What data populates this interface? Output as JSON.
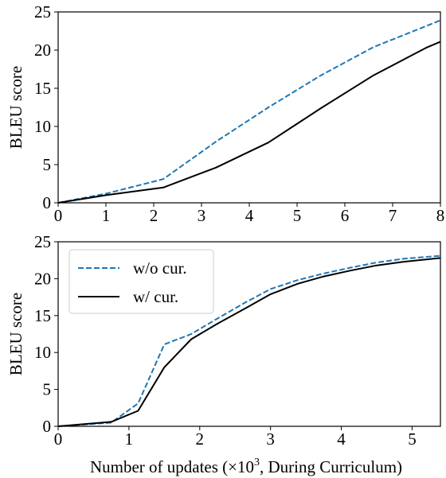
{
  "chart_data": [
    {
      "type": "line",
      "title": "",
      "xlabel": "",
      "ylabel": "BLEU score",
      "xlim": [
        0,
        8
      ],
      "ylim": [
        0,
        25
      ],
      "xticks": [
        0,
        1,
        2,
        3,
        4,
        5,
        6,
        7,
        8
      ],
      "yticks": [
        0,
        5,
        10,
        15,
        20,
        25
      ],
      "grid": false,
      "legend": "none",
      "series": [
        {
          "color": "#1f77b4",
          "linestyle": "dashed",
          "points": [
            [
              0,
              0
            ],
            [
              1,
              1.2
            ],
            [
              2.2,
              3.1
            ],
            [
              3.3,
              8.0
            ],
            [
              4.4,
              12.5
            ],
            [
              5.5,
              16.7
            ],
            [
              6.6,
              20.4
            ],
            [
              8.0,
              23.9
            ]
          ]
        },
        {
          "color": "#000000",
          "linestyle": "solid",
          "points": [
            [
              0,
              0
            ],
            [
              1,
              1.0
            ],
            [
              2.2,
              2.0
            ],
            [
              3.3,
              4.6
            ],
            [
              4.4,
              7.9
            ],
            [
              5.5,
              12.4
            ],
            [
              6.6,
              16.7
            ],
            [
              7.7,
              20.3
            ],
            [
              8.0,
              21.1
            ]
          ]
        }
      ]
    },
    {
      "type": "line",
      "title": "",
      "xlabel": "Number of updates (×10³, During Curriculum)",
      "xlabel_main": "Number of updates (×10",
      "xlabel_sup": "3",
      "xlabel_tail": ", During Curriculum)",
      "ylabel": "BLEU score",
      "xlim": [
        0,
        5.4
      ],
      "ylim": [
        0,
        25
      ],
      "xticks": [
        0,
        1,
        2,
        3,
        4,
        5
      ],
      "yticks": [
        0,
        5,
        10,
        15,
        20,
        25
      ],
      "grid": false,
      "legend": "top-left",
      "series": [
        {
          "name": "w/o cur.",
          "color": "#1f77b4",
          "linestyle": "dashed",
          "points": [
            [
              0,
              0
            ],
            [
              0.75,
              0.5
            ],
            [
              1.13,
              3.1
            ],
            [
              1.5,
              11.1
            ],
            [
              1.88,
              12.5
            ],
            [
              2.25,
              14.6
            ],
            [
              2.63,
              16.7
            ],
            [
              3.0,
              18.6
            ],
            [
              3.38,
              19.8
            ],
            [
              3.75,
              20.7
            ],
            [
              4.13,
              21.5
            ],
            [
              4.5,
              22.2
            ],
            [
              4.88,
              22.7
            ],
            [
              5.4,
              23.1
            ]
          ]
        },
        {
          "name": "w/ cur.",
          "color": "#000000",
          "linestyle": "solid",
          "points": [
            [
              0,
              0
            ],
            [
              0.75,
              0.6
            ],
            [
              1.13,
              2.1
            ],
            [
              1.5,
              8.0
            ],
            [
              1.88,
              11.8
            ],
            [
              2.25,
              13.9
            ],
            [
              2.63,
              15.9
            ],
            [
              3.0,
              17.9
            ],
            [
              3.38,
              19.3
            ],
            [
              3.75,
              20.3
            ],
            [
              4.13,
              21.1
            ],
            [
              4.5,
              21.8
            ],
            [
              4.88,
              22.3
            ],
            [
              5.4,
              22.8
            ]
          ]
        }
      ]
    }
  ]
}
